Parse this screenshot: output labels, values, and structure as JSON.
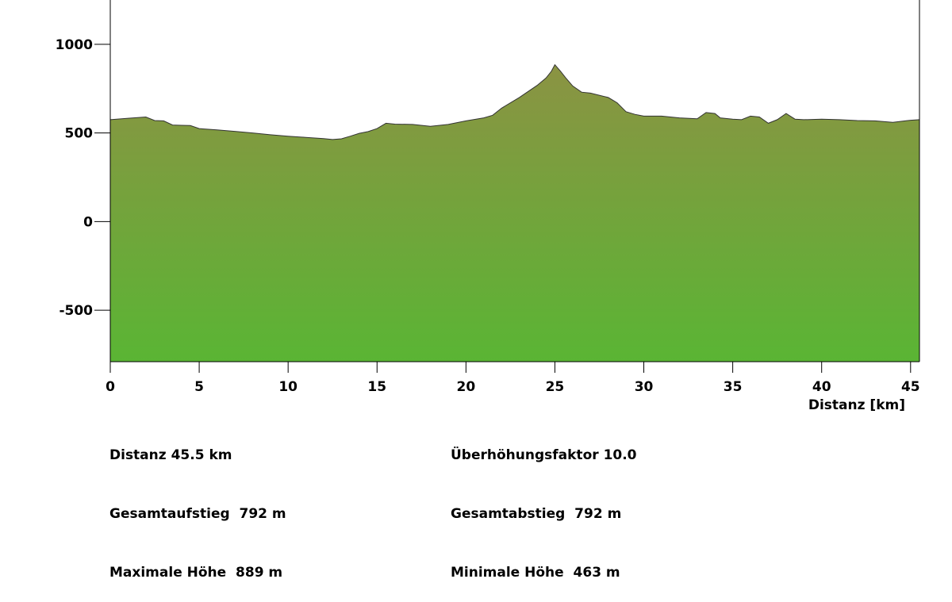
{
  "chart_data": {
    "type": "area",
    "xlabel": "Distanz [km]",
    "ylabel": "",
    "xlim": [
      0,
      45.5
    ],
    "ylim": [
      -790,
      1250
    ],
    "xticks": [
      0,
      5,
      10,
      15,
      20,
      25,
      30,
      35,
      40,
      45
    ],
    "yticks": [
      -500,
      0,
      500,
      1000
    ],
    "grid": false,
    "colors": {
      "fill_top": "#8b9343",
      "fill_bottom": "#5ab534",
      "line": "#333333"
    },
    "x": [
      0,
      1,
      2,
      2.5,
      3,
      3.5,
      4,
      4.5,
      5,
      6,
      7,
      8,
      9,
      10,
      11,
      12,
      12.5,
      13,
      13.5,
      14,
      14.5,
      15,
      15.5,
      16,
      17,
      18,
      19,
      20,
      21,
      21.5,
      22,
      23,
      24,
      24.5,
      24.8,
      25,
      25.3,
      25.6,
      26,
      26.5,
      27,
      28,
      28.5,
      29,
      29.5,
      30,
      31,
      32,
      33,
      33.5,
      34,
      34.3,
      35,
      35.5,
      36,
      36.5,
      37,
      37.5,
      38,
      38.5,
      39,
      40,
      41,
      42,
      43,
      44,
      45,
      45.5
    ],
    "y": [
      575,
      583,
      590,
      570,
      568,
      545,
      543,
      542,
      525,
      517,
      509,
      500,
      490,
      482,
      475,
      468,
      463,
      467,
      482,
      498,
      508,
      525,
      555,
      550,
      548,
      538,
      548,
      568,
      585,
      600,
      640,
      700,
      768,
      810,
      848,
      885,
      850,
      812,
      765,
      730,
      725,
      700,
      670,
      620,
      605,
      595,
      595,
      585,
      580,
      615,
      610,
      585,
      578,
      575,
      595,
      590,
      555,
      575,
      610,
      578,
      575,
      578,
      575,
      570,
      568,
      560,
      572,
      575
    ]
  },
  "stats": {
    "left": [
      {
        "label": "Distanz",
        "value": "45.5 km"
      },
      {
        "label": "Gesamtaufstieg",
        "value": "792 m"
      },
      {
        "label": "Maximale Höhe",
        "value": "889 m"
      }
    ],
    "right": [
      {
        "label": "Überhöhungsfaktor",
        "value": "10.0"
      },
      {
        "label": "Gesamtabstieg",
        "value": "792 m"
      },
      {
        "label": "Minimale Höhe",
        "value": "463 m"
      }
    ]
  }
}
